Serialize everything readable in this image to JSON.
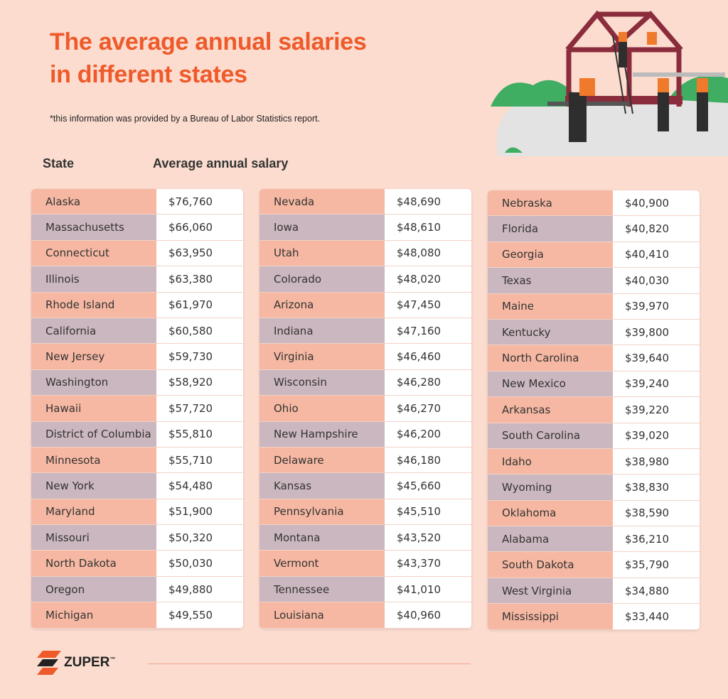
{
  "header": {
    "title_line1": "The average annual salaries",
    "title_line2": "in different states",
    "note": "*this information was provided by a Bureau of Labor Statistics report."
  },
  "columns": {
    "state": "State",
    "salary": "Average annual salary"
  },
  "tables": [
    {
      "rows": [
        [
          "Alaska",
          "$76,760"
        ],
        [
          "Massachusetts",
          "$66,060"
        ],
        [
          "Connecticut",
          "$63,950"
        ],
        [
          "Illinois",
          "$63,380"
        ],
        [
          "Rhode Island",
          "$61,970"
        ],
        [
          "California",
          "$60,580"
        ],
        [
          "New Jersey",
          "$59,730"
        ],
        [
          "Washington",
          "$58,920"
        ],
        [
          "Hawaii",
          "$57,720"
        ],
        [
          "District of Columbia",
          "$55,810"
        ],
        [
          "Minnesota",
          "$55,710"
        ],
        [
          "New York",
          "$54,480"
        ],
        [
          "Maryland",
          "$51,900"
        ],
        [
          "Missouri",
          "$50,320"
        ],
        [
          "North Dakota",
          "$50,030"
        ],
        [
          "Oregon",
          "$49,880"
        ],
        [
          "Michigan",
          "$49,550"
        ]
      ]
    },
    {
      "rows": [
        [
          "Nevada",
          "$48,690"
        ],
        [
          "Iowa",
          "$48,610"
        ],
        [
          "Utah",
          "$48,080"
        ],
        [
          "Colorado",
          "$48,020"
        ],
        [
          "Arizona",
          "$47,450"
        ],
        [
          "Indiana",
          "$47,160"
        ],
        [
          "Virginia",
          "$46,460"
        ],
        [
          "Wisconsin",
          "$46,280"
        ],
        [
          "Ohio",
          "$46,270"
        ],
        [
          "New Hampshire",
          "$46,200"
        ],
        [
          "Delaware",
          "$46,180"
        ],
        [
          "Kansas",
          "$45,660"
        ],
        [
          "Pennsylvania",
          "$45,510"
        ],
        [
          "Montana",
          "$43,520"
        ],
        [
          "Vermont",
          "$43,370"
        ],
        [
          "Tennessee",
          "$41,010"
        ],
        [
          "Louisiana",
          "$40,960"
        ]
      ]
    },
    {
      "rows": [
        [
          "Nebraska",
          "$40,900"
        ],
        [
          "Florida",
          "$40,820"
        ],
        [
          "Georgia",
          "$40,410"
        ],
        [
          "Texas",
          "$40,030"
        ],
        [
          "Maine",
          "$39,970"
        ],
        [
          "Kentucky",
          "$39,800"
        ],
        [
          "North Carolina",
          "$39,640"
        ],
        [
          "New Mexico",
          "$39,240"
        ],
        [
          "Arkansas",
          "$39,220"
        ],
        [
          "South Carolina",
          "$39,020"
        ],
        [
          "Idaho",
          "$38,980"
        ],
        [
          "Wyoming",
          "$38,830"
        ],
        [
          "Oklahoma",
          "$38,590"
        ],
        [
          "Alabama",
          "$36,210"
        ],
        [
          "South Dakota",
          "$35,790"
        ],
        [
          "West Virginia",
          "$34,880"
        ],
        [
          "Mississippi",
          "$33,440"
        ]
      ]
    }
  ],
  "footer": {
    "brand": "ZUPER",
    "trademark": "™"
  }
}
